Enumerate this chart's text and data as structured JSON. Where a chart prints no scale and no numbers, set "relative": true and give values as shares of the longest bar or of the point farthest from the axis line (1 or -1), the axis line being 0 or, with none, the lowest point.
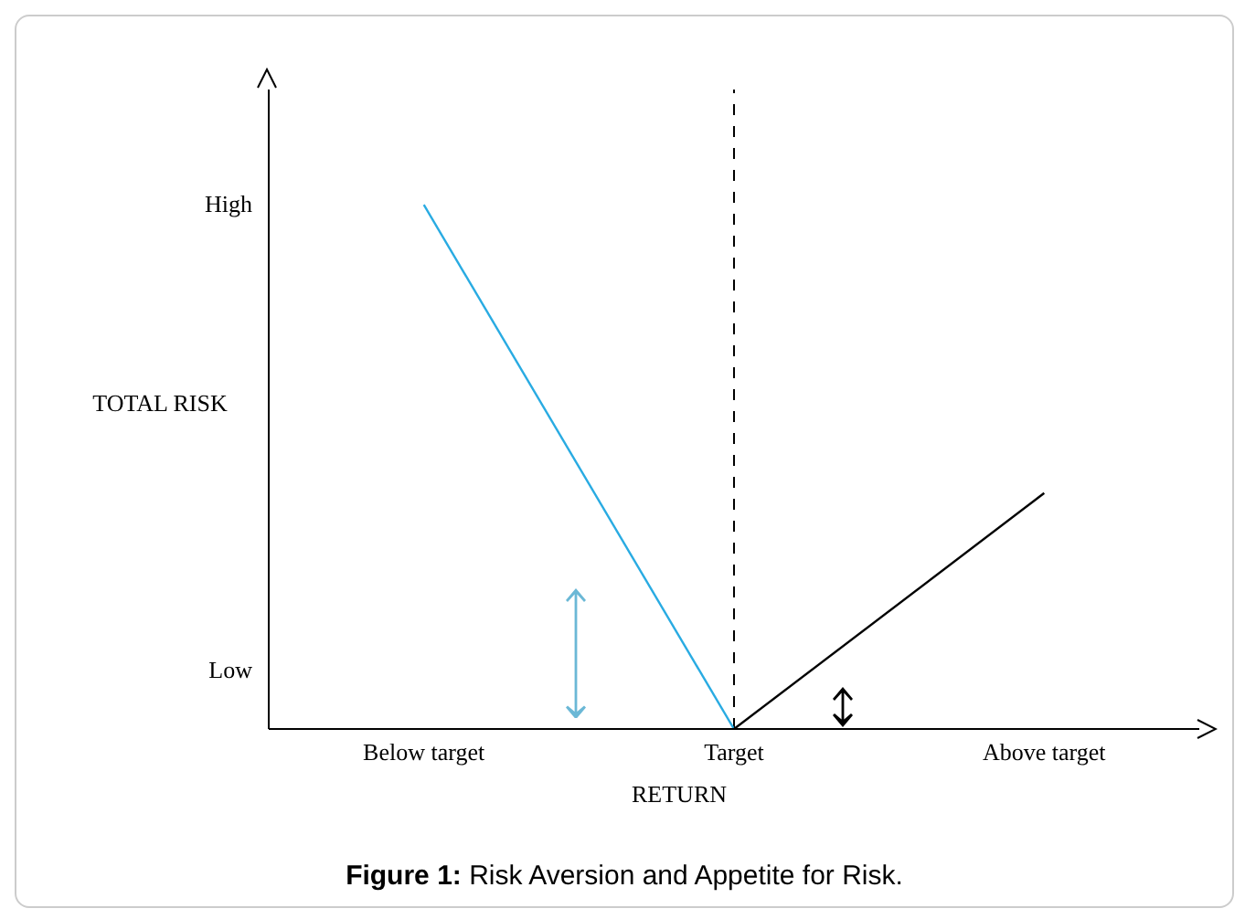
{
  "chart_data": {
    "type": "line",
    "relative": true,
    "xlabel": "RETURN",
    "ylabel": "TOTAL RISK",
    "categories": [
      "Below target",
      "Target",
      "Above target"
    ],
    "series": [
      {
        "color": "#29abe2",
        "values": [
          1,
          0,
          null
        ]
      },
      {
        "color": "#000000",
        "values": [
          null,
          0,
          0.45
        ]
      }
    ],
    "ref_lines": [
      {
        "axis": "x",
        "value": "Target",
        "color": "#000000",
        "line_style": "dashed"
      }
    ],
    "annotations": [
      "High",
      "Low",
      "Figure 1: Risk Aversion and Appetite for Risk."
    ],
    "marker": "none",
    "legend": false,
    "grid": false
  }
}
